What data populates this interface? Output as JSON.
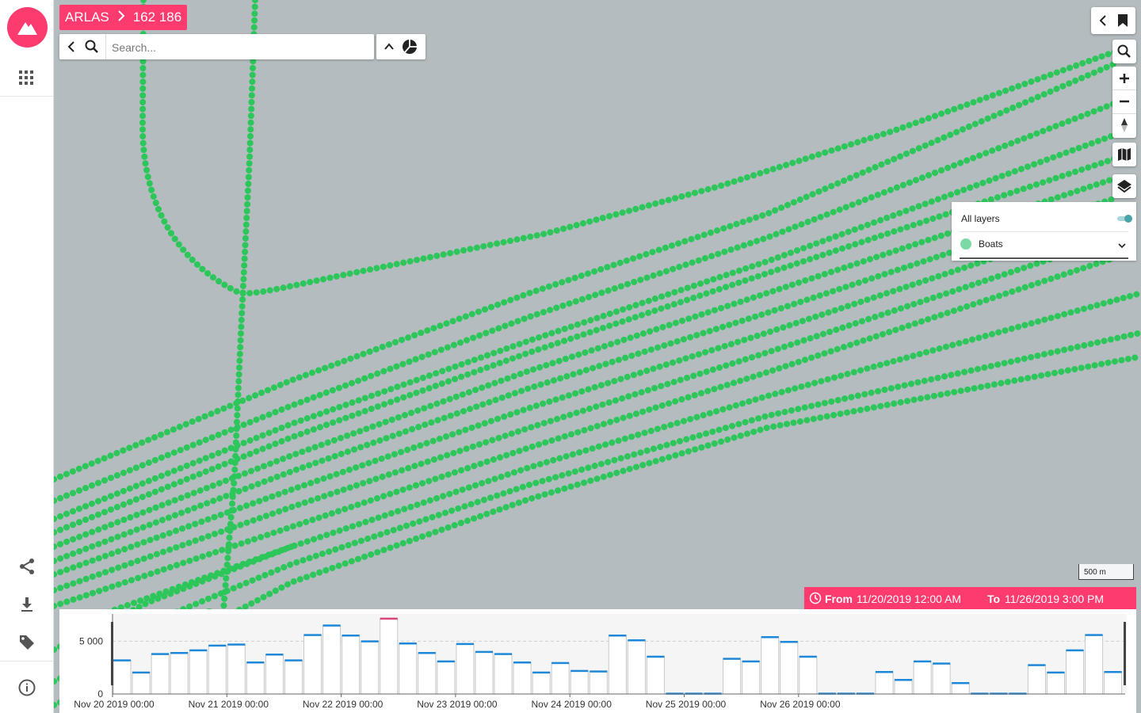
{
  "app": {
    "name": "ARLAS",
    "count": "162 186"
  },
  "search": {
    "placeholder": "Search..."
  },
  "layers": {
    "all_label": "All layers",
    "items": [
      {
        "label": "Boats",
        "color": "#7bd9a4"
      }
    ]
  },
  "scale": {
    "label": "500 m"
  },
  "timerange": {
    "from_label": "From",
    "from_value": "11/20/2019 12:00 AM",
    "to_label": "To",
    "to_value": "11/26/2019 3:00 PM"
  },
  "colors": {
    "accent": "#fd3b6e",
    "track": "#2dc65a",
    "bar_top": "#1e88d8"
  },
  "icons": [
    "arlas-logo-icon",
    "apps-grid-icon",
    "share-icon",
    "download-icon",
    "tag-icon",
    "info-icon",
    "chevron-left-icon",
    "search-icon",
    "chevron-up-icon",
    "pie-chart-icon",
    "bookmark-icon",
    "zoom-in-icon",
    "zoom-out-icon",
    "compass-icon",
    "map-icon",
    "layers-icon",
    "clock-icon",
    "chevron-down-icon"
  ],
  "chart_data": {
    "type": "bar",
    "ylim": [
      0,
      7500
    ],
    "yticks": [
      0,
      5000
    ],
    "ytick_labels": [
      "0",
      "5 000"
    ],
    "xtick_labels": [
      "Nov 20 2019 00:00",
      "Nov 21 2019 00:00",
      "Nov 22 2019 00:00",
      "Nov 23 2019 00:00",
      "Nov 24 2019 00:00",
      "Nov 25 2019 00:00",
      "Nov 26 2019 00:00"
    ],
    "bin_hours": 4,
    "values": [
      3200,
      2050,
      3800,
      3900,
      4150,
      4600,
      4700,
      3000,
      3750,
      3200,
      5600,
      6500,
      5550,
      5000,
      7150,
      4800,
      3900,
      3100,
      4750,
      4000,
      3800,
      3000,
      2050,
      2950,
      2200,
      2150,
      5550,
      5100,
      3550,
      50,
      50,
      50,
      3350,
      3100,
      5400,
      4950,
      3550,
      50,
      50,
      50,
      2100,
      1350,
      3100,
      2900,
      1050,
      50,
      50,
      50,
      2750,
      2050,
      4150,
      5600,
      2100
    ],
    "highlighted_index": 14
  }
}
